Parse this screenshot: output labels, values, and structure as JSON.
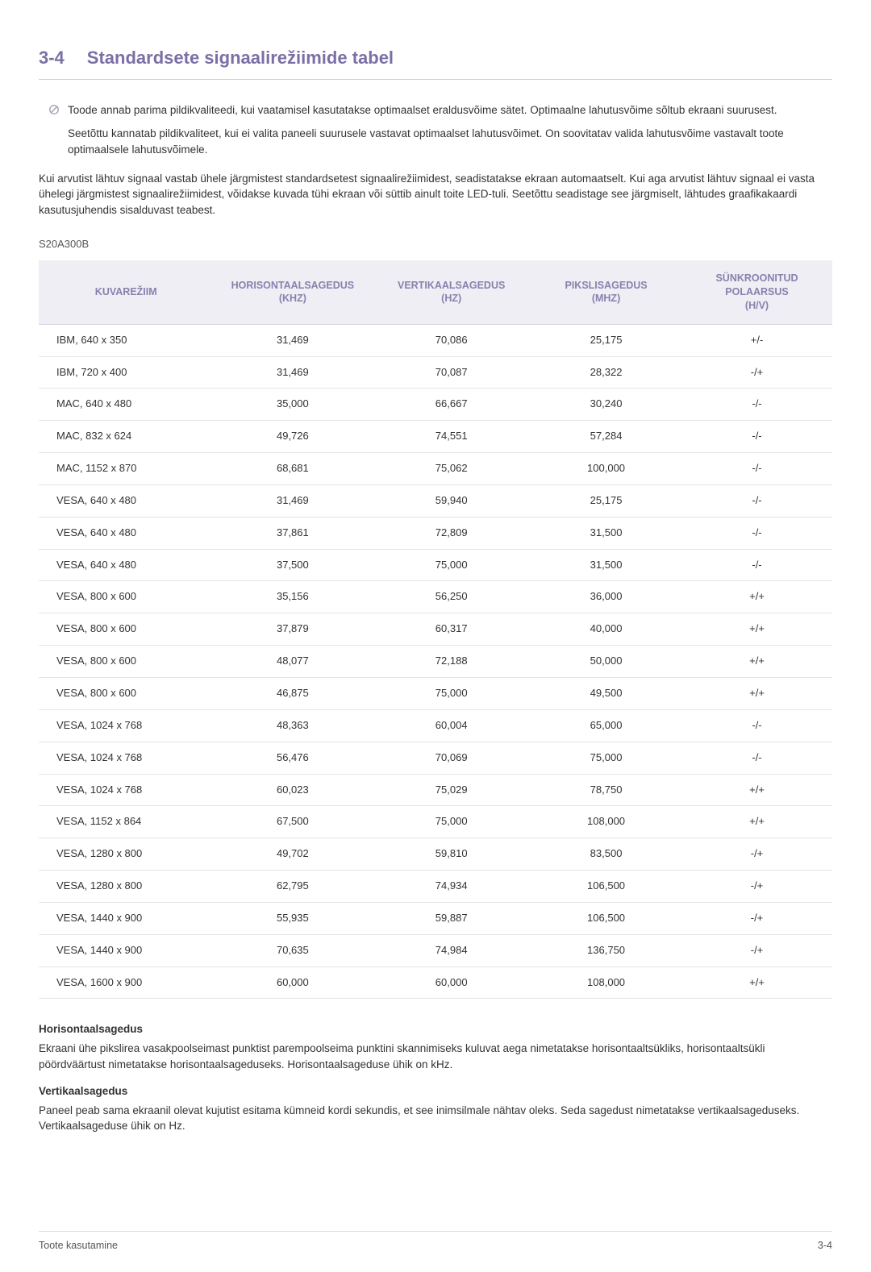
{
  "heading": {
    "number": "3-4",
    "title": "Standardsete signaalirežiimide tabel"
  },
  "note": {
    "p1": "Toode annab parima pildikvaliteedi, kui vaatamisel kasutatakse optimaalset eraldusvõime sätet. Optimaalne lahutusvõime sõltub ekraani suurusest.",
    "p2": "Seetõttu kannatab pildikvaliteet, kui ei valita paneeli suurusele vastavat optimaalset lahutusvõimet. On soovitatav valida lahutusvõime vastavalt toote optimaalsele lahutusvõimele."
  },
  "intro": "Kui arvutist lähtuv signaal vastab ühele järgmistest standardsetest signaalirežiimidest, seadistatakse ekraan automaatselt. Kui aga arvutist lähtuv signaal ei vasta ühelegi järgmistest signaalirežiimidest, võidakse kuvada tühi ekraan või süttib ainult toite LED-tuli. Seetõttu seadistage see järgmiselt, lähtudes graafikakaardi kasutusjuhendis sisalduvast teabest.",
  "model": "S20A300B",
  "table": {
    "columns": [
      "KUVAREŽIIM",
      "HORISONTAALSAGEDUS (KHZ)",
      "VERTIKAALSAGEDUS (HZ)",
      "PIKSLISAGEDUS (MHZ)",
      "SÜNKROONITUD POLAARSUS (H/V)"
    ],
    "col_widths": [
      "22%",
      "20%",
      "20%",
      "19%",
      "19%"
    ],
    "header_bg": "#eeeef4",
    "header_color": "#8a80ad",
    "border_color": "#e4e4ec",
    "rows": [
      [
        "IBM, 640 x 350",
        "31,469",
        "70,086",
        "25,175",
        "+/-"
      ],
      [
        "IBM, 720 x 400",
        "31,469",
        "70,087",
        "28,322",
        "-/+"
      ],
      [
        "MAC, 640 x 480",
        "35,000",
        "66,667",
        "30,240",
        "-/-"
      ],
      [
        "MAC, 832 x 624",
        "49,726",
        "74,551",
        "57,284",
        "-/-"
      ],
      [
        "MAC, 1152 x 870",
        "68,681",
        "75,062",
        "100,000",
        "-/-"
      ],
      [
        "VESA, 640 x 480",
        "31,469",
        "59,940",
        "25,175",
        "-/-"
      ],
      [
        "VESA, 640 x 480",
        "37,861",
        "72,809",
        "31,500",
        "-/-"
      ],
      [
        "VESA, 640 x 480",
        "37,500",
        "75,000",
        "31,500",
        "-/-"
      ],
      [
        "VESA, 800 x 600",
        "35,156",
        "56,250",
        "36,000",
        "+/+"
      ],
      [
        "VESA, 800 x 600",
        "37,879",
        "60,317",
        "40,000",
        "+/+"
      ],
      [
        "VESA, 800 x 600",
        "48,077",
        "72,188",
        "50,000",
        "+/+"
      ],
      [
        "VESA, 800 x 600",
        "46,875",
        "75,000",
        "49,500",
        "+/+"
      ],
      [
        "VESA, 1024 x 768",
        "48,363",
        "60,004",
        "65,000",
        "-/-"
      ],
      [
        "VESA, 1024 x 768",
        "56,476",
        "70,069",
        "75,000",
        "-/-"
      ],
      [
        "VESA, 1024 x 768",
        "60,023",
        "75,029",
        "78,750",
        "+/+"
      ],
      [
        "VESA, 1152 x 864",
        "67,500",
        "75,000",
        "108,000",
        "+/+"
      ],
      [
        "VESA, 1280 x 800",
        "49,702",
        "59,810",
        "83,500",
        "-/+"
      ],
      [
        "VESA, 1280 x 800",
        "62,795",
        "74,934",
        "106,500",
        "-/+"
      ],
      [
        "VESA, 1440 x 900",
        "55,935",
        "59,887",
        "106,500",
        "-/+"
      ],
      [
        "VESA, 1440 x 900",
        "70,635",
        "74,984",
        "136,750",
        "-/+"
      ],
      [
        "VESA, 1600 x 900",
        "60,000",
        "60,000",
        "108,000",
        "+/+"
      ]
    ]
  },
  "definitions": {
    "h1": "Horisontaalsagedus",
    "p1": "Ekraani ühe pikslirea vasakpoolseimast punktist parempoolseima punktini skannimiseks kuluvat aega nimetatakse horisontaaltsükliks, horisontaaltsükli pöördväärtust nimetatakse horisontaalsageduseks. Horisontaalsageduse ühik on kHz.",
    "h2": "Vertikaalsagedus",
    "p2": "Paneel peab sama ekraanil olevat kujutist esitama kümneid kordi sekundis, et see inimsilmale nähtav oleks. Seda sagedust nimetatakse vertikaalsageduseks. Vertikaalsageduse ühik on Hz."
  },
  "footer": {
    "left": "Toote kasutamine",
    "right": "3-4"
  }
}
